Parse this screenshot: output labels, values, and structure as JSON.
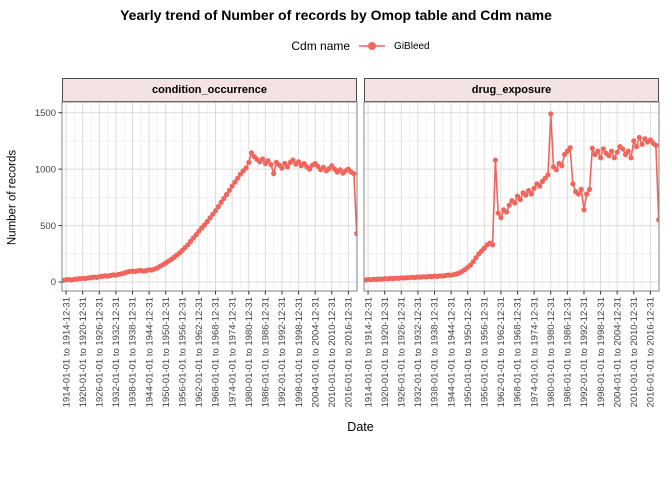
{
  "title": "Yearly trend of Number of records by Omop table and Cdm name",
  "legend": {
    "title": "Cdm name",
    "series_label": "GiBleed"
  },
  "axes": {
    "x_title": "Date",
    "y_title": "Number of records",
    "y_ticks": [
      0,
      500,
      1000,
      1500
    ],
    "y_tick_labels": [
      "0",
      "500",
      "1000",
      "1500"
    ],
    "y_minor_ticks": [
      250,
      750,
      1250
    ],
    "x_tick_years": [
      1914,
      1920,
      1926,
      1932,
      1938,
      1944,
      1950,
      1956,
      1962,
      1968,
      1974,
      1980,
      1986,
      1992,
      1998,
      2004,
      2010,
      2016
    ],
    "x_tick_labels": [
      "1914-01-01 to 1914-12-31",
      "1920-01-01 to 1920-12-31",
      "1926-01-01 to 1926-12-31",
      "1932-01-01 to 1932-12-31",
      "1938-01-01 to 1938-12-31",
      "1944-01-01 to 1944-12-31",
      "1950-01-01 to 1950-12-31",
      "1956-01-01 to 1956-12-31",
      "1962-01-01 to 1962-12-31",
      "1968-01-01 to 1968-12-31",
      "1974-01-01 to 1974-12-31",
      "1980-01-01 to 1980-12-31",
      "1986-01-01 to 1986-12-31",
      "1992-01-01 to 1992-12-31",
      "1998-01-01 to 1998-12-31",
      "2004-01-01 to 2004-12-31",
      "2010-01-01 to 2010-12-31",
      "2016-01-01 to 2016-12-31"
    ]
  },
  "colors": {
    "series": "#F0665E",
    "strip_fill": "#F3E3E3",
    "strip_border": "#4A4A4A",
    "panel_border": "#858585",
    "grid_major": "#DBDBDB",
    "grid_minor": "#ECECEC",
    "axis_text": "#424242",
    "tick_mark": "#333333"
  },
  "chart_data": {
    "type": "line",
    "title": "Yearly trend of Number of records by Omop table and Cdm name",
    "xlabel": "Date",
    "ylabel": "Number of records",
    "ylim": [
      0,
      1500
    ],
    "legend_position": "top",
    "grid": true,
    "x_unit": "yearly bin (YYYY-01-01 to YYYY-12-31)",
    "x": [
      1913,
      1914,
      1915,
      1916,
      1917,
      1918,
      1919,
      1920,
      1921,
      1922,
      1923,
      1924,
      1925,
      1926,
      1927,
      1928,
      1929,
      1930,
      1931,
      1932,
      1933,
      1934,
      1935,
      1936,
      1937,
      1938,
      1939,
      1940,
      1941,
      1942,
      1943,
      1944,
      1945,
      1946,
      1947,
      1948,
      1949,
      1950,
      1951,
      1952,
      1953,
      1954,
      1955,
      1956,
      1957,
      1958,
      1959,
      1960,
      1961,
      1962,
      1963,
      1964,
      1965,
      1966,
      1967,
      1968,
      1969,
      1970,
      1971,
      1972,
      1973,
      1974,
      1975,
      1976,
      1977,
      1978,
      1979,
      1980,
      1981,
      1982,
      1983,
      1984,
      1985,
      1986,
      1987,
      1988,
      1989,
      1990,
      1991,
      1992,
      1993,
      1994,
      1995,
      1996,
      1997,
      1998,
      1999,
      2000,
      2001,
      2002,
      2003,
      2004,
      2005,
      2006,
      2007,
      2008,
      2009,
      2010,
      2011,
      2012,
      2013,
      2014,
      2015,
      2016,
      2017,
      2018,
      2019
    ],
    "facets": [
      {
        "label": "condition_occurrence",
        "series": [
          {
            "name": "GiBleed",
            "values": [
              14,
              20,
              22,
              19,
              24,
              27,
              30,
              33,
              31,
              36,
              39,
              43,
              41,
              47,
              50,
              54,
              52,
              58,
              63,
              61,
              68,
              73,
              80,
              88,
              93,
              97,
              94,
              100,
              103,
              97,
              101,
              108,
              106,
              114,
              124,
              140,
              153,
              168,
              185,
              200,
              218,
              238,
              258,
              280,
              305,
              330,
              360,
              390,
              420,
              450,
              478,
              505,
              535,
              568,
              600,
              632,
              668,
              705,
              740,
              775,
              812,
              850,
              885,
              920,
              955,
              985,
              1010,
              1060,
              1145,
              1110,
              1085,
              1065,
              1090,
              1050,
              1075,
              1040,
              960,
              1060,
              1035,
              1010,
              1050,
              1020,
              1060,
              1080,
              1045,
              1065,
              1030,
              1050,
              1020,
              1000,
              1035,
              1050,
              1025,
              995,
              1015,
              985,
              1005,
              1030,
              1000,
              975,
              995,
              965,
              985,
              1000,
              975,
              960,
              430
            ]
          }
        ]
      },
      {
        "label": "drug_exposure",
        "series": [
          {
            "name": "GiBleed",
            "values": [
              18,
              22,
              20,
              25,
              23,
              27,
              25,
              30,
              28,
              32,
              30,
              34,
              33,
              37,
              35,
              39,
              38,
              42,
              40,
              44,
              43,
              47,
              45,
              50,
              48,
              52,
              50,
              55,
              53,
              58,
              62,
              60,
              65,
              72,
              80,
              95,
              110,
              130,
              150,
              180,
              215,
              250,
              275,
              300,
              330,
              345,
              330,
              1080,
              610,
              570,
              640,
              620,
              680,
              720,
              700,
              760,
              730,
              790,
              770,
              810,
              780,
              830,
              870,
              850,
              890,
              920,
              950,
              1490,
              1020,
              995,
              1050,
              1030,
              1130,
              1160,
              1190,
              870,
              800,
              780,
              820,
              640,
              780,
              820,
              1185,
              1130,
              1160,
              1100,
              1180,
              1140,
              1120,
              1160,
              1100,
              1150,
              1200,
              1180,
              1130,
              1160,
              1100,
              1250,
              1200,
              1280,
              1220,
              1270,
              1240,
              1260,
              1230,
              1210,
              550
            ]
          }
        ]
      }
    ]
  }
}
